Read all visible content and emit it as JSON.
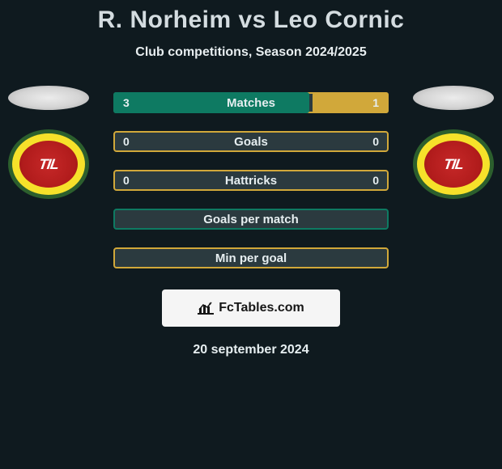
{
  "header": {
    "title": "R. Norheim vs Leo Cornic",
    "subtitle": "Club competitions, Season 2024/2025"
  },
  "badge_text": "TIL",
  "colors": {
    "background": "#0f1a1f",
    "bar_track": "#2b3a3f",
    "left_fill": "#0e7a62",
    "right_fill": "#d1a83a",
    "watermark_bg": "#f5f5f5"
  },
  "stats": [
    {
      "label": "Matches",
      "left_val": "3",
      "right_val": "1",
      "left_fill_pct": 72,
      "right_fill_pct": 28,
      "left_fill_color": "#0e7a62",
      "right_fill_color": "#d1a83a",
      "border_color": "#d1a83a",
      "show_nums": true
    },
    {
      "label": "Goals",
      "left_val": "0",
      "right_val": "0",
      "left_fill_pct": 0,
      "right_fill_pct": 0,
      "left_fill_color": "#0e7a62",
      "right_fill_color": "#d1a83a",
      "border_color": "#d1a83a",
      "show_nums": true
    },
    {
      "label": "Hattricks",
      "left_val": "0",
      "right_val": "0",
      "left_fill_pct": 0,
      "right_fill_pct": 0,
      "left_fill_color": "#0e7a62",
      "right_fill_color": "#d1a83a",
      "border_color": "#d1a83a",
      "show_nums": true
    },
    {
      "label": "Goals per match",
      "left_val": "",
      "right_val": "",
      "left_fill_pct": 0,
      "right_fill_pct": 0,
      "left_fill_color": "#0e7a62",
      "right_fill_color": "#d1a83a",
      "border_color": "#0e7a62",
      "show_nums": false
    },
    {
      "label": "Min per goal",
      "left_val": "",
      "right_val": "",
      "left_fill_pct": 0,
      "right_fill_pct": 0,
      "left_fill_color": "#0e7a62",
      "right_fill_color": "#d1a83a",
      "border_color": "#d1a83a",
      "show_nums": false
    }
  ],
  "watermark": {
    "text": "FcTables.com"
  },
  "date": "20 september 2024"
}
